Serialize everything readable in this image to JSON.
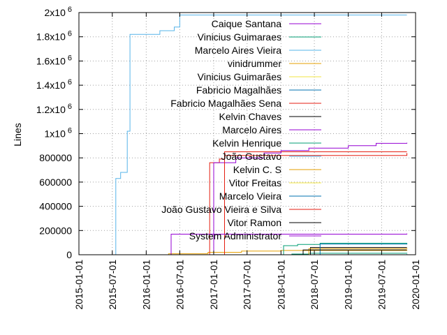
{
  "chart_data": {
    "type": "line",
    "xlabel": "",
    "ylabel": "Lines",
    "xlim": [
      "2015-01-01",
      "2020-01-01"
    ],
    "ylim": [
      0,
      2000000
    ],
    "grid": "dotted",
    "legend_placement": "top-right",
    "x_ticks": [
      "2015-01-01",
      "2015-07-01",
      "2016-01-01",
      "2016-07-01",
      "2017-01-01",
      "2017-07-01",
      "2018-01-01",
      "2018-07-01",
      "2019-01-01",
      "2019-07-01",
      "2020-01-01"
    ],
    "y_ticks": [
      {
        "value": 0,
        "label": "0",
        "exp": ""
      },
      {
        "value": 200000,
        "label": "200000",
        "exp": ""
      },
      {
        "value": 400000,
        "label": "400000",
        "exp": ""
      },
      {
        "value": 600000,
        "label": "600000",
        "exp": ""
      },
      {
        "value": 800000,
        "label": "800000",
        "exp": ""
      },
      {
        "value": 1000000,
        "label": "1x10",
        "exp": "6"
      },
      {
        "value": 1200000,
        "label": "1.2x10",
        "exp": "6"
      },
      {
        "value": 1400000,
        "label": "1.4x10",
        "exp": "6"
      },
      {
        "value": 1600000,
        "label": "1.6x10",
        "exp": "6"
      },
      {
        "value": 1800000,
        "label": "1.8x10",
        "exp": "6"
      },
      {
        "value": 2000000,
        "label": "2x10",
        "exp": "6"
      }
    ],
    "series": [
      {
        "name": "Caique Santana",
        "color": "#9400d3",
        "points": [
          [
            "2019-11-01",
            0
          ]
        ]
      },
      {
        "name": "Vinicius Guimaraes",
        "color": "#009e73",
        "points": [
          [
            "2017-12-01",
            0
          ],
          [
            "2018-03-01",
            6000
          ],
          [
            "2018-06-01",
            12000
          ],
          [
            "2019-11-15",
            15000
          ]
        ]
      },
      {
        "name": "Marcelo Aires Vieira",
        "color": "#56b4e9",
        "points": [
          [
            "2015-06-01",
            0
          ],
          [
            "2015-07-20",
            630000
          ],
          [
            "2015-08-15",
            680000
          ],
          [
            "2015-09-20",
            1020000
          ],
          [
            "2015-10-05",
            1820000
          ],
          [
            "2016-03-15",
            1850000
          ],
          [
            "2016-06-01",
            1880000
          ],
          [
            "2016-07-01",
            1980000
          ],
          [
            "2019-11-15",
            1980000
          ]
        ]
      },
      {
        "name": "vinidrummer",
        "color": "#e69f00",
        "points": [
          [
            "2016-03-01",
            0
          ],
          [
            "2016-05-01",
            8000
          ],
          [
            "2016-12-01",
            20000
          ],
          [
            "2017-06-01",
            30000
          ],
          [
            "2018-01-01",
            35000
          ],
          [
            "2019-11-15",
            38000
          ]
        ]
      },
      {
        "name": "Vinicius Guimarães",
        "color": "#f0e442",
        "points": [
          [
            "2018-06-01",
            0
          ],
          [
            "2019-11-15",
            3000
          ]
        ]
      },
      {
        "name": "Fabricio Magalhães",
        "color": "#0072b2",
        "points": [
          [
            "2018-06-01",
            0
          ],
          [
            "2019-11-15",
            5000
          ]
        ]
      },
      {
        "name": "Fabricio Magalhães Sena",
        "color": "#e51e10",
        "points": [
          [
            "2016-11-15",
            0
          ],
          [
            "2016-12-10",
            760000
          ],
          [
            "2017-02-01",
            790000
          ],
          [
            "2017-03-01",
            850000
          ],
          [
            "2019-11-15",
            850000
          ]
        ]
      },
      {
        "name": "Kelvin Chaves",
        "color": "#000000",
        "points": [
          [
            "2018-05-01",
            0
          ],
          [
            "2018-06-10",
            60000
          ],
          [
            "2019-11-15",
            60000
          ]
        ]
      },
      {
        "name": "Marcelo Aires",
        "color": "#9400d3",
        "points": [
          [
            "2016-12-15",
            0
          ],
          [
            "2017-01-01",
            760000
          ],
          [
            "2017-05-01",
            800000
          ],
          [
            "2017-10-01",
            840000
          ],
          [
            "2018-01-01",
            860000
          ],
          [
            "2018-06-01",
            880000
          ],
          [
            "2019-01-01",
            900000
          ],
          [
            "2019-06-01",
            920000
          ],
          [
            "2019-11-15",
            925000
          ]
        ]
      },
      {
        "name": "Kelvin Henrique",
        "color": "#009e73",
        "points": [
          [
            "2018-01-01",
            0
          ],
          [
            "2018-01-15",
            75000
          ],
          [
            "2018-04-01",
            85000
          ],
          [
            "2018-08-01",
            95000
          ],
          [
            "2019-11-15",
            97000
          ]
        ]
      },
      {
        "name": "João Gustavo",
        "color": "#56b4e9",
        "points": [
          [
            "2019-11-15",
            0
          ]
        ]
      },
      {
        "name": "Kelvin C. S",
        "color": "#e69f00",
        "points": [
          [
            "2018-05-01",
            0
          ],
          [
            "2018-06-01",
            50000
          ],
          [
            "2019-11-15",
            55000
          ]
        ]
      },
      {
        "name": "Vitor Freitas",
        "color": "#f0e442",
        "points": [
          [
            "2019-11-15",
            0
          ]
        ]
      },
      {
        "name": "Marcelo Vieira",
        "color": "#0072b2",
        "points": [
          [
            "2018-06-01",
            0
          ],
          [
            "2018-08-01",
            88000
          ],
          [
            "2019-11-15",
            92000
          ]
        ]
      },
      {
        "name": "João Gustavo Vieira e Silva",
        "color": "#e51e10",
        "points": [
          [
            "2017-02-01",
            0
          ],
          [
            "2017-03-01",
            820000
          ],
          [
            "2019-11-15",
            840000
          ]
        ]
      },
      {
        "name": "Vitor Ramon",
        "color": "#000000",
        "points": [
          [
            "2018-04-01",
            0
          ],
          [
            "2018-05-01",
            40000
          ],
          [
            "2019-11-15",
            40000
          ]
        ]
      },
      {
        "name": "System Administrator",
        "color": "#9400d3",
        "points": [
          [
            "2016-05-01",
            0
          ],
          [
            "2016-05-15",
            170000
          ],
          [
            "2019-11-15",
            175000
          ]
        ]
      }
    ]
  }
}
